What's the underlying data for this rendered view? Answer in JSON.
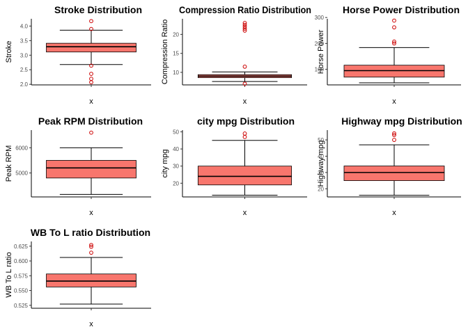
{
  "colors": {
    "box_fill": "#f8766d",
    "outlier": "#cc0000",
    "line": "#000000"
  },
  "chart_data": [
    {
      "type": "boxplot",
      "title": "Stroke Distribution",
      "xlabel": "x",
      "ylabel": "Stroke",
      "ylim": [
        1.98,
        4.25
      ],
      "yticks": [
        2.0,
        2.5,
        3.0,
        3.5,
        4.0
      ],
      "tick_labels": [
        "2.0",
        "2.5",
        "3.0",
        "3.5",
        "4.0"
      ],
      "stats": {
        "min": 2.68,
        "q1": 3.11,
        "median": 3.29,
        "q3": 3.41,
        "max": 3.86
      },
      "outliers": [
        2.07,
        2.19,
        2.36,
        2.64,
        3.9,
        4.17
      ]
    },
    {
      "type": "boxplot",
      "title": "Compression Ratio Distribution",
      "xlabel": "x",
      "ylabel": "Compression Ratio",
      "ylim": [
        6.7,
        24.1
      ],
      "yticks": [
        10,
        15,
        20
      ],
      "tick_labels": [
        "10",
        "15",
        "20"
      ],
      "stats": {
        "min": 7.6,
        "q1": 8.6,
        "median": 9.0,
        "q3": 9.4,
        "max": 10.1
      },
      "outliers": [
        7.0,
        11.5,
        21.0,
        21.5,
        22.0,
        22.5,
        23.0
      ]
    },
    {
      "type": "boxplot",
      "title": "Horse Power Distribution",
      "xlabel": "x",
      "ylabel": "Horse Power",
      "ylim": [
        40,
        295
      ],
      "yticks": [
        100,
        200,
        300
      ],
      "tick_labels": [
        "100",
        "200",
        "300"
      ],
      "stats": {
        "min": 48,
        "q1": 70,
        "median": 95,
        "q3": 116,
        "max": 184
      },
      "outliers": [
        200,
        207,
        262,
        288
      ]
    },
    {
      "type": "boxplot",
      "title": "Peak RPM Distribution",
      "xlabel": "x",
      "ylabel": "Peak RPM",
      "ylim": [
        4050,
        6700
      ],
      "yticks": [
        5000,
        6000
      ],
      "tick_labels": [
        "5000",
        "6000"
      ],
      "stats": {
        "min": 4150,
        "q1": 4800,
        "median": 5200,
        "q3": 5500,
        "max": 6000
      },
      "outliers": [
        6600
      ]
    },
    {
      "type": "boxplot",
      "title": "city mpg Distribution",
      "xlabel": "x",
      "ylabel": "city mpg",
      "ylim": [
        12,
        51
      ],
      "yticks": [
        20,
        30,
        40,
        50
      ],
      "tick_labels": [
        "20",
        "30",
        "40",
        "50"
      ],
      "stats": {
        "min": 13,
        "q1": 19,
        "median": 24,
        "q3": 30,
        "max": 45
      },
      "outliers": [
        47,
        49
      ]
    },
    {
      "type": "boxplot",
      "title": "Highway mpg Distribution",
      "xlabel": "x",
      "ylabel": "Highway mpg",
      "ylim": [
        15,
        56
      ],
      "yticks": [
        20,
        30,
        40,
        50
      ],
      "tick_labels": [
        "20",
        "30",
        "40",
        "50"
      ],
      "stats": {
        "min": 16,
        "q1": 25,
        "median": 30,
        "q3": 34,
        "max": 47
      },
      "outliers": [
        50,
        53,
        54
      ]
    },
    {
      "type": "boxplot",
      "title": "WB To L ratio Distribution",
      "xlabel": "x",
      "ylabel": "WB To L ratio",
      "ylim": [
        0.52,
        0.633
      ],
      "yticks": [
        0.525,
        0.55,
        0.575,
        0.6,
        0.625
      ],
      "tick_labels": [
        "0.525",
        "0.550",
        "0.575",
        "0.600",
        "0.625"
      ],
      "stats": {
        "min": 0.527,
        "q1": 0.556,
        "median": 0.566,
        "q3": 0.578,
        "max": 0.606
      },
      "outliers": [
        0.614,
        0.624,
        0.627
      ]
    }
  ]
}
